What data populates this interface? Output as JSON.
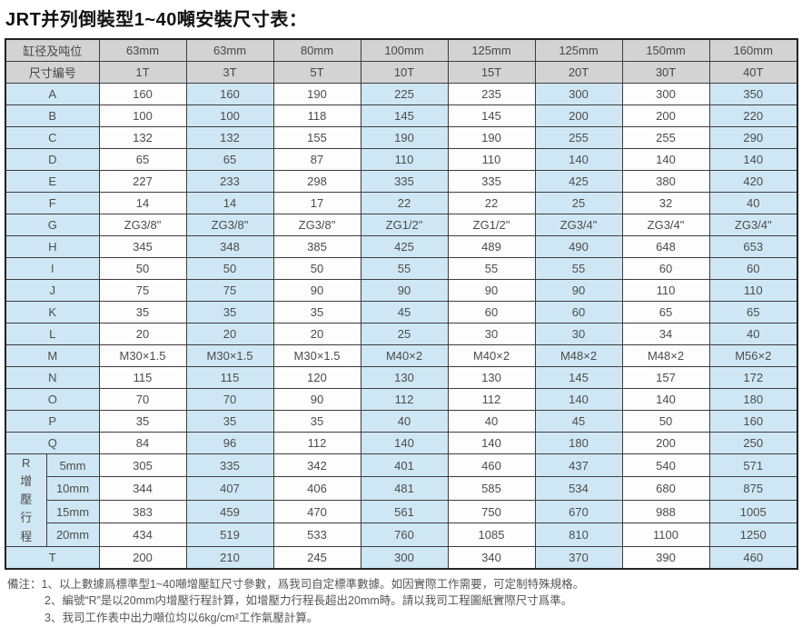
{
  "title": "JRT并列倒裝型1~40噸安裝尺寸表：",
  "colors": {
    "header_bg": "#d3d3d3",
    "label_col_bg": "#cfe7f5",
    "alt_col_bg": "#cfe7f5",
    "plain_col_bg": "#fdfdfd",
    "border": "#3d3d3d",
    "text": "#4c4c4c"
  },
  "table": {
    "header1_label": "缸径及吨位",
    "header2_label": "尺寸编号",
    "columns": [
      "63mm",
      "63mm",
      "80mm",
      "100mm",
      "125mm",
      "125mm",
      "150mm",
      "160mm"
    ],
    "tonnage": [
      "1T",
      "3T",
      "5T",
      "10T",
      "15T",
      "20T",
      "30T",
      "40T"
    ],
    "rows": [
      {
        "label": "A",
        "values": [
          "160",
          "160",
          "190",
          "225",
          "235",
          "300",
          "300",
          "350"
        ]
      },
      {
        "label": "B",
        "values": [
          "100",
          "100",
          "118",
          "145",
          "145",
          "200",
          "200",
          "220"
        ]
      },
      {
        "label": "C",
        "values": [
          "132",
          "132",
          "155",
          "190",
          "190",
          "255",
          "255",
          "290"
        ]
      },
      {
        "label": "D",
        "values": [
          "65",
          "65",
          "87",
          "110",
          "110",
          "140",
          "140",
          "140"
        ]
      },
      {
        "label": "E",
        "values": [
          "227",
          "233",
          "298",
          "335",
          "335",
          "425",
          "380",
          "420"
        ]
      },
      {
        "label": "F",
        "values": [
          "14",
          "14",
          "17",
          "22",
          "22",
          "25",
          "32",
          "40"
        ]
      },
      {
        "label": "G",
        "values": [
          "ZG3/8\"",
          "ZG3/8\"",
          "ZG3/8\"",
          "ZG1/2\"",
          "ZG1/2\"",
          "ZG3/4\"",
          "ZG3/4\"",
          "ZG3/4\""
        ]
      },
      {
        "label": "H",
        "values": [
          "345",
          "348",
          "385",
          "425",
          "489",
          "490",
          "648",
          "653"
        ]
      },
      {
        "label": "I",
        "values": [
          "50",
          "50",
          "50",
          "55",
          "55",
          "55",
          "60",
          "60"
        ]
      },
      {
        "label": "J",
        "values": [
          "75",
          "75",
          "90",
          "90",
          "90",
          "90",
          "110",
          "110"
        ]
      },
      {
        "label": "K",
        "values": [
          "35",
          "35",
          "35",
          "45",
          "60",
          "60",
          "65",
          "65"
        ]
      },
      {
        "label": "L",
        "values": [
          "20",
          "20",
          "20",
          "25",
          "30",
          "30",
          "34",
          "40"
        ]
      },
      {
        "label": "M",
        "values": [
          "M30×1.5",
          "M30×1.5",
          "M30×1.5",
          "M40×2",
          "M40×2",
          "M48×2",
          "M48×2",
          "M56×2"
        ]
      },
      {
        "label": "N",
        "values": [
          "115",
          "115",
          "120",
          "130",
          "130",
          "145",
          "157",
          "172"
        ]
      },
      {
        "label": "O",
        "values": [
          "70",
          "70",
          "90",
          "112",
          "112",
          "140",
          "140",
          "180"
        ]
      },
      {
        "label": "P",
        "values": [
          "35",
          "35",
          "35",
          "40",
          "40",
          "45",
          "50",
          "160"
        ]
      },
      {
        "label": "Q",
        "values": [
          "84",
          "96",
          "112",
          "140",
          "140",
          "180",
          "200",
          "250"
        ]
      }
    ],
    "r_section": {
      "label": "R增壓行程",
      "rows": [
        {
          "label": "5mm",
          "values": [
            "305",
            "335",
            "342",
            "401",
            "460",
            "437",
            "540",
            "571"
          ]
        },
        {
          "label": "10mm",
          "values": [
            "344",
            "407",
            "406",
            "481",
            "585",
            "534",
            "680",
            "875"
          ]
        },
        {
          "label": "15mm",
          "values": [
            "383",
            "459",
            "470",
            "561",
            "750",
            "670",
            "988",
            "1005"
          ]
        },
        {
          "label": "20mm",
          "values": [
            "434",
            "519",
            "533",
            "760",
            "1085",
            "810",
            "1100",
            "1250"
          ]
        }
      ]
    },
    "t_row": {
      "label": "T",
      "values": [
        "200",
        "210",
        "245",
        "300",
        "340",
        "370",
        "390",
        "460"
      ]
    }
  },
  "notes": {
    "prefix": "備注：",
    "items": [
      "1、以上數據爲標準型1~40噸增壓缸尺寸參數，爲我司自定標準數據。如因實際工作需要，可定制特殊規格。",
      "2、編號“R”是以20mm内增壓行程計算，如增壓力行程長超出20mm時。請以我司工程圖紙實際尺寸爲準。",
      "3、我司工作表中出力噸位均以6kg/cm²工作氣壓計算。"
    ]
  }
}
